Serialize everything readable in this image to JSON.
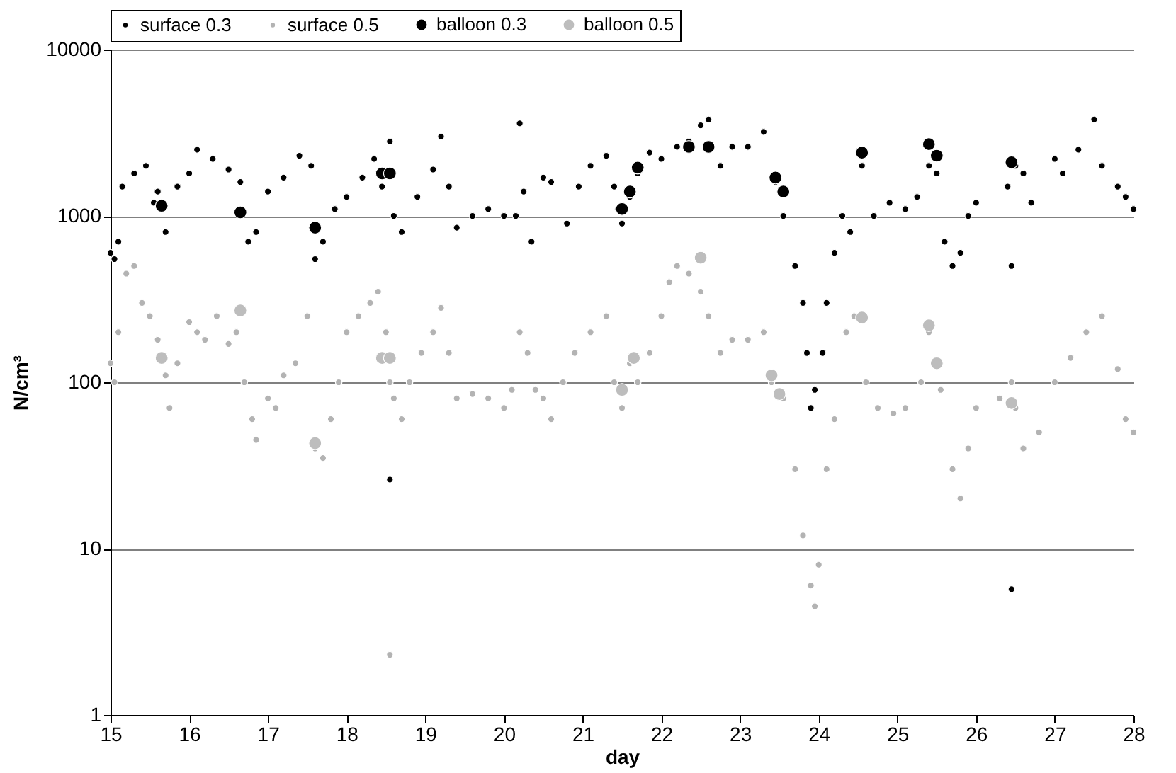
{
  "chart_data": {
    "type": "scatter",
    "xlabel": "day",
    "ylabel": "N/cm³",
    "xlim": [
      15,
      28
    ],
    "xticks": [
      15,
      16,
      17,
      18,
      19,
      20,
      21,
      22,
      23,
      24,
      25,
      26,
      27,
      28
    ],
    "ylim": [
      1,
      10000
    ],
    "yticks": [
      1,
      10,
      100,
      1000,
      10000
    ],
    "log": "y",
    "grid": "y",
    "legend": "top",
    "marker": "circle",
    "series": [
      {
        "name": "surface 0.3",
        "color": "#000000",
        "x": [
          15.0,
          15.05,
          15.1,
          15.15,
          15.3,
          15.45,
          15.55,
          15.6,
          15.7,
          15.85,
          16.0,
          16.1,
          16.3,
          16.5,
          16.65,
          16.75,
          16.85,
          17.0,
          17.2,
          17.4,
          17.55,
          17.6,
          17.7,
          17.85,
          18.0,
          18.2,
          18.35,
          18.45,
          18.55,
          18.6,
          18.7,
          18.9,
          19.1,
          19.2,
          19.3,
          19.4,
          19.6,
          19.8,
          20.0,
          20.15,
          20.2,
          20.25,
          20.35,
          20.5,
          20.6,
          20.8,
          20.95,
          21.1,
          21.3,
          21.4,
          21.45,
          21.5,
          21.6,
          21.7,
          21.85,
          22.0,
          22.2,
          22.35,
          22.5,
          22.6,
          22.75,
          22.9,
          23.1,
          23.3,
          23.45,
          23.55,
          23.7,
          23.8,
          23.85,
          23.9,
          23.95,
          24.05,
          24.1,
          24.2,
          24.3,
          24.4,
          24.55,
          24.7,
          24.9,
          25.1,
          25.25,
          25.4,
          25.5,
          25.6,
          25.7,
          25.8,
          25.9,
          26.0,
          26.4,
          26.5,
          26.6,
          26.7,
          27.0,
          27.1,
          27.3,
          27.5,
          27.6,
          27.8,
          27.9,
          28.0,
          18.55,
          26.45,
          26.45
        ],
        "values": [
          600,
          550,
          700,
          1500,
          1800,
          2000,
          1200,
          1400,
          800,
          1500,
          1800,
          2500,
          2200,
          1900,
          1600,
          700,
          800,
          1400,
          1700,
          2300,
          2000,
          550,
          700,
          1100,
          1300,
          1700,
          2200,
          1500,
          2800,
          1000,
          800,
          1300,
          1900,
          3000,
          1500,
          850,
          1000,
          1100,
          1000,
          1000,
          3600,
          1400,
          700,
          1700,
          1600,
          900,
          1500,
          2000,
          2300,
          1500,
          1100,
          900,
          1300,
          1800,
          2400,
          2200,
          2600,
          2800,
          3500,
          3800,
          2000,
          2600,
          2600,
          3200,
          1600,
          1000,
          500,
          300,
          150,
          70,
          90,
          150,
          300,
          600,
          1000,
          800,
          2000,
          1000,
          1200,
          1100,
          1300,
          2000,
          1800,
          700,
          500,
          600,
          1000,
          1200,
          1500,
          2000,
          1800,
          1200,
          2200,
          1800,
          2500,
          3800,
          2000,
          1500,
          1300,
          1100,
          26,
          5.7,
          500
        ]
      },
      {
        "name": "surface 0.5",
        "color": "#b3b3b3",
        "x": [
          15.0,
          15.05,
          15.1,
          15.2,
          15.3,
          15.4,
          15.5,
          15.6,
          15.7,
          15.75,
          15.85,
          16.0,
          16.1,
          16.2,
          16.35,
          16.5,
          16.6,
          16.7,
          16.8,
          16.85,
          17.0,
          17.1,
          17.2,
          17.35,
          17.5,
          17.6,
          17.7,
          17.8,
          17.9,
          18.0,
          18.15,
          18.3,
          18.4,
          18.5,
          18.55,
          18.6,
          18.7,
          18.8,
          18.95,
          19.1,
          19.2,
          19.3,
          19.4,
          19.6,
          19.8,
          20.0,
          20.1,
          20.2,
          20.3,
          20.4,
          20.5,
          20.6,
          20.75,
          20.9,
          21.1,
          21.3,
          21.4,
          21.5,
          21.6,
          21.7,
          21.85,
          22.0,
          22.1,
          22.2,
          22.35,
          22.5,
          22.6,
          22.75,
          22.9,
          23.1,
          23.3,
          23.4,
          23.55,
          23.7,
          23.8,
          23.9,
          23.95,
          24.0,
          24.1,
          24.2,
          24.35,
          24.45,
          24.6,
          24.75,
          24.95,
          25.1,
          25.3,
          25.4,
          25.55,
          25.7,
          25.8,
          25.9,
          26.0,
          26.3,
          26.45,
          26.5,
          26.6,
          26.8,
          27.0,
          27.2,
          27.4,
          27.6,
          27.8,
          27.9,
          28.0,
          18.55
        ],
        "values": [
          130,
          100,
          200,
          450,
          500,
          300,
          250,
          180,
          110,
          70,
          130,
          230,
          200,
          180,
          250,
          170,
          200,
          100,
          60,
          45,
          80,
          70,
          110,
          130,
          250,
          40,
          35,
          60,
          100,
          200,
          250,
          300,
          350,
          200,
          100,
          80,
          60,
          100,
          150,
          200,
          280,
          150,
          80,
          85,
          80,
          70,
          90,
          200,
          150,
          90,
          80,
          60,
          100,
          150,
          200,
          250,
          100,
          70,
          130,
          100,
          150,
          250,
          400,
          500,
          450,
          350,
          250,
          150,
          180,
          180,
          200,
          100,
          80,
          30,
          12,
          6,
          4.5,
          8,
          30,
          60,
          200,
          250,
          100,
          70,
          65,
          70,
          100,
          200,
          90,
          30,
          20,
          40,
          70,
          80,
          100,
          70,
          40,
          50,
          100,
          140,
          200,
          250,
          120,
          60,
          50,
          2.3
        ]
      },
      {
        "name": "balloon 0.3",
        "color": "#000000",
        "x": [
          15.65,
          16.65,
          17.6,
          18.45,
          18.55,
          21.5,
          21.6,
          21.7,
          22.35,
          22.6,
          23.45,
          23.55,
          24.55,
          25.4,
          25.5,
          26.45
        ],
        "values": [
          1150,
          1050,
          850,
          1800,
          1800,
          1100,
          1400,
          1950,
          2600,
          2600,
          1700,
          1400,
          2400,
          2700,
          2300,
          2100
        ]
      },
      {
        "name": "balloon 0.5",
        "color": "#bdbdbd",
        "x": [
          15.65,
          16.65,
          17.6,
          18.45,
          18.55,
          21.5,
          21.65,
          22.5,
          23.4,
          23.5,
          24.55,
          25.4,
          25.5,
          26.45
        ],
        "values": [
          140,
          270,
          43,
          140,
          140,
          90,
          140,
          560,
          110,
          85,
          245,
          220,
          130,
          75
        ]
      }
    ]
  }
}
